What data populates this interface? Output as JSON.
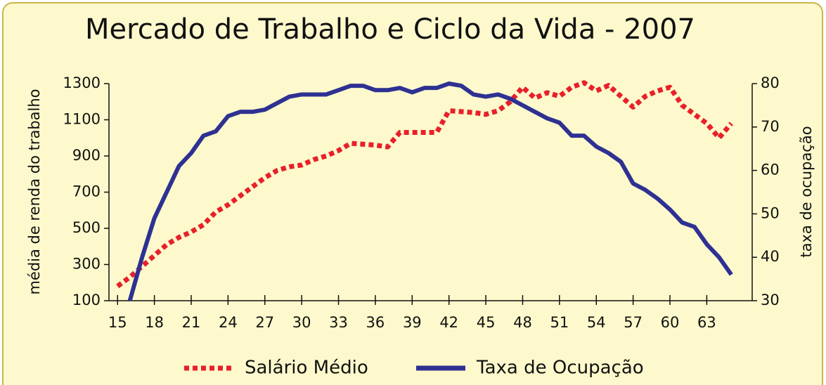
{
  "chart_data": {
    "type": "line",
    "title": "Mercado de Trabalho e Ciclo da Vida - 2007",
    "y_label": "média de renda do trabalho",
    "y2_label": "taxa de ocupação",
    "x": [
      15,
      16,
      17,
      18,
      19,
      20,
      21,
      22,
      23,
      24,
      25,
      26,
      27,
      28,
      29,
      30,
      31,
      32,
      33,
      34,
      35,
      36,
      37,
      38,
      39,
      40,
      41,
      42,
      43,
      44,
      45,
      46,
      47,
      48,
      49,
      50,
      51,
      52,
      53,
      54,
      55,
      56,
      57,
      58,
      59,
      60,
      61,
      62,
      63,
      64,
      65
    ],
    "series": [
      {
        "name": "Salário Médio",
        "color": "#e8202a",
        "style": "dotted",
        "values": [
          180,
          230,
          290,
          350,
          410,
          450,
          480,
          520,
          590,
          630,
          680,
          730,
          780,
          820,
          840,
          850,
          880,
          900,
          930,
          970,
          965,
          960,
          950,
          1030,
          1030,
          1030,
          1030,
          1150,
          1145,
          1140,
          1130,
          1150,
          1200,
          1280,
          1220,
          1250,
          1230,
          1280,
          1305,
          1260,
          1290,
          1230,
          1170,
          1230,
          1260,
          1280,
          1180,
          1130,
          1080,
          1000,
          1080
        ]
      },
      {
        "name": "Taxa de Ocupação",
        "color": "#2e3192",
        "style": "solid",
        "axis": "y2",
        "values": [
          null,
          30,
          40,
          49,
          55,
          61,
          64,
          68,
          69,
          72.5,
          73.5,
          73.5,
          74,
          75.5,
          77,
          77.5,
          77.5,
          77.5,
          78.5,
          79.5,
          79.5,
          78.5,
          78.5,
          79,
          78,
          79,
          79,
          80,
          79.5,
          77.5,
          77,
          77.5,
          76.5,
          75,
          73.5,
          72,
          71,
          68,
          68,
          65.5,
          64,
          62,
          57,
          55.5,
          53.5,
          51,
          48,
          47,
          43,
          40,
          36
        ]
      }
    ],
    "xlim": [
      14.3,
      66.7
    ],
    "xticks": [
      15,
      18,
      21,
      24,
      27,
      30,
      33,
      36,
      39,
      42,
      45,
      48,
      51,
      54,
      57,
      60,
      63
    ],
    "ylim": [
      100,
      1300
    ],
    "yticks": [
      100,
      300,
      500,
      700,
      900,
      1100,
      1300
    ],
    "y2lim": [
      30,
      80
    ],
    "y2ticks": [
      30,
      40,
      50,
      60,
      70,
      80
    ]
  }
}
